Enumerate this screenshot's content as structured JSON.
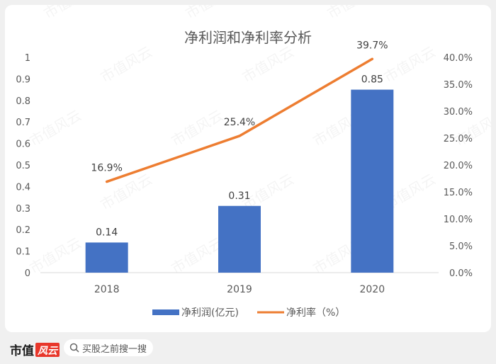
{
  "watermark": "市值风云",
  "footer": {
    "brand": "市值",
    "brand_logo_text": "风云",
    "search_placeholder": "买股之前搜一搜"
  },
  "colors": {
    "bar": "#4472c4",
    "line": "#ed7d31",
    "axis_text": "#595959",
    "title": "#595959"
  },
  "chart_data": {
    "type": "bar",
    "title": "净利润和净利率分析",
    "categories": [
      "2018",
      "2019",
      "2020"
    ],
    "series": [
      {
        "name": "净利润(亿元)",
        "type": "bar",
        "axis": "left",
        "values": [
          0.14,
          0.31,
          0.85
        ],
        "labels": [
          "0.14",
          "0.31",
          "0.85"
        ]
      },
      {
        "name": "净利率（%）",
        "type": "line",
        "axis": "right",
        "values": [
          16.9,
          25.4,
          39.7
        ],
        "labels": [
          "16.9%",
          "25.4%",
          "39.7%"
        ]
      }
    ],
    "y_left": {
      "min": 0,
      "max": 1,
      "ticks": [
        0,
        0.1,
        0.2,
        0.3,
        0.4,
        0.5,
        0.6,
        0.7,
        0.8,
        0.9,
        1
      ],
      "tick_labels": [
        "0",
        "0.1",
        "0.2",
        "0.3",
        "0.4",
        "0.5",
        "0.6",
        "0.7",
        "0.8",
        "0.9",
        "1"
      ]
    },
    "y_right": {
      "min": 0,
      "max": 40,
      "ticks": [
        0,
        5,
        10,
        15,
        20,
        25,
        30,
        35,
        40
      ],
      "tick_labels": [
        "0.0%",
        "5.0%",
        "10.0%",
        "15.0%",
        "20.0%",
        "25.0%",
        "30.0%",
        "35.0%",
        "40.0%"
      ]
    },
    "legend_position": "bottom",
    "grid": false
  }
}
